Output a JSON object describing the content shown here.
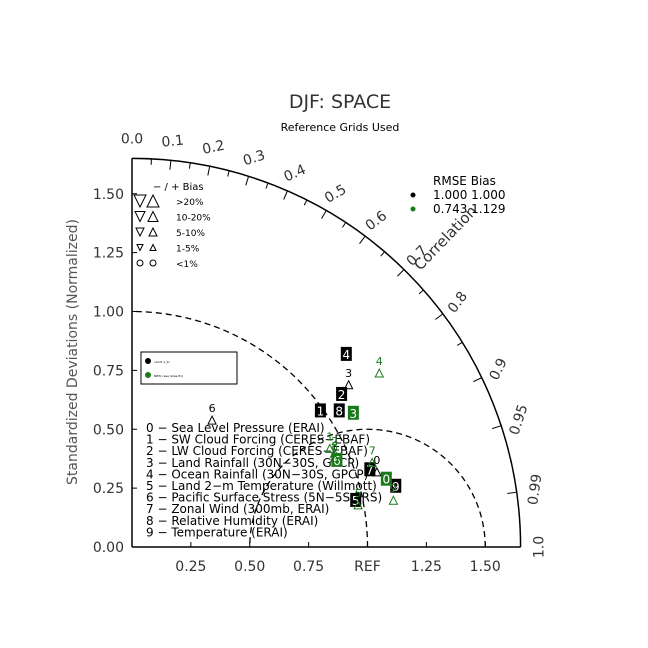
{
  "chart_data": {
    "type": "scatter",
    "title": "DJF: SPACE",
    "subtitle": "Reference Grids Used",
    "ylabel": "Standardized Deviations (Normalized)",
    "arc_label": "Correlation",
    "ref_label": "REF",
    "ylim": [
      0,
      1.65
    ],
    "std_ticks": [
      "0.00",
      "0.25",
      "0.50",
      "0.75",
      "1.00",
      "1.25",
      "1.50"
    ],
    "x_ticks": [
      "0.25",
      "0.50",
      "0.75",
      "REF",
      "1.25",
      "1.50"
    ],
    "corr_ticks": [
      "0.0",
      "0.1",
      "0.2",
      "0.3",
      "0.4",
      "0.5",
      "0.6",
      "0.7",
      "0.8",
      "0.9",
      "0.95",
      "0.99",
      "1.0"
    ],
    "bias_legend": {
      "header": "−  /  +      Bias",
      "rows": [
        ">20%",
        "10-20%",
        "5-10%",
        "1-5%",
        "<1%"
      ]
    },
    "rmse_legend": {
      "header": "RMSE  Bias",
      "rows": [
        {
          "values": "1.000 1.000",
          "color": "#000000"
        },
        {
          "values": "0.743 1.129",
          "color": "#1a7a1a"
        }
      ]
    },
    "case_box": [
      "cam5.1_bl",
      "NEW case (bias-fix)"
    ],
    "variables": [
      "0 − Sea Level Pressure (ERAI)",
      "1 − SW Cloud Forcing (CERES−EBAF)",
      "2 − LW Cloud Forcing (CERES−EBAF)",
      "3 − Land Rainfall (30N−30S, GPCP)",
      "4 − Ocean Rainfall (30N−30S, GPCP)",
      "5 − Land 2−m Temperature (Willmott)",
      "6 − Pacific Surface Stress (5N−5S,ERS)",
      "7 − Zonal Wind (300mb, ERAI)",
      "8 − Relative Humidity (ERAI)",
      "9 − Temperature (ERAI)"
    ],
    "series": [
      {
        "name": "cam5.1_bl",
        "color": "#000000",
        "points": [
          {
            "id": "0",
            "x": 1.04,
            "y": 0.34,
            "boxed": false
          },
          {
            "id": "1",
            "x": 0.8,
            "y": 0.58,
            "boxed": true
          },
          {
            "id": "2",
            "x": 0.89,
            "y": 0.65,
            "boxed": true
          },
          {
            "id": "3",
            "x": 0.92,
            "y": 0.71,
            "boxed": false
          },
          {
            "id": "4",
            "x": 0.91,
            "y": 0.82,
            "boxed": true
          },
          {
            "id": "5",
            "x": 0.95,
            "y": 0.2,
            "boxed": true
          },
          {
            "id": "6",
            "x": 0.34,
            "y": 0.56,
            "boxed": false
          },
          {
            "id": "7",
            "x": 1.01,
            "y": 0.33,
            "boxed": true
          },
          {
            "id": "8",
            "x": 0.88,
            "y": 0.58,
            "boxed": true
          },
          {
            "id": "9",
            "x": 1.12,
            "y": 0.26,
            "boxed": true
          }
        ]
      },
      {
        "name": "NEW case (bias-fix)",
        "color": "#1a7a1a",
        "points": [
          {
            "id": "0",
            "x": 1.08,
            "y": 0.29,
            "boxed": true
          },
          {
            "id": "1",
            "x": 0.84,
            "y": 0.44,
            "boxed": false
          },
          {
            "id": "2",
            "x": 0.86,
            "y": 0.42,
            "boxed": false
          },
          {
            "id": "3",
            "x": 0.94,
            "y": 0.57,
            "boxed": true
          },
          {
            "id": "4",
            "x": 1.05,
            "y": 0.76,
            "boxed": false
          },
          {
            "id": "5",
            "x": 0.96,
            "y": 0.2,
            "boxed": false
          },
          {
            "id": "6",
            "x": 0.87,
            "y": 0.37,
            "boxed": true
          },
          {
            "id": "7",
            "x": 1.02,
            "y": 0.38,
            "boxed": false
          },
          {
            "id": "8",
            "x": 0.86,
            "y": 0.4,
            "boxed": false
          },
          {
            "id": "9",
            "x": 1.11,
            "y": 0.22,
            "boxed": false
          }
        ]
      }
    ]
  }
}
